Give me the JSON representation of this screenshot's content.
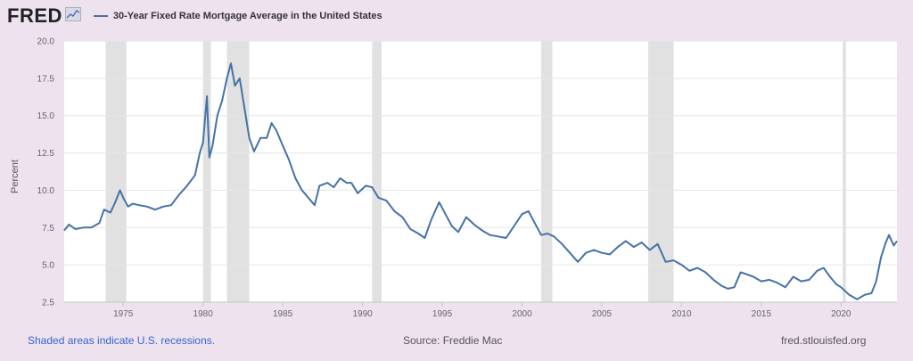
{
  "header": {
    "logo": "FRED",
    "legend_label": "30-Year Fixed Rate Mortgage Average in the United States"
  },
  "footer": {
    "recession_note": "Shaded areas indicate U.S. recessions.",
    "source": "Source: Freddie Mac",
    "site": "fred.stlouisfed.org"
  },
  "colors": {
    "series": "#4572a7",
    "recession": "#e1e1e1",
    "background": "#eee2ef"
  },
  "chart_data": {
    "type": "line",
    "title": "",
    "xlabel": "",
    "ylabel": "Percent",
    "xlim": [
      1971.3,
      2023.5
    ],
    "ylim": [
      2.5,
      20.0
    ],
    "x_ticks": [
      "1975",
      "1980",
      "1985",
      "1990",
      "1995",
      "2000",
      "2005",
      "2010",
      "2015",
      "2020"
    ],
    "y_ticks": [
      "2.5",
      "5.0",
      "7.5",
      "10.0",
      "12.5",
      "15.0",
      "17.5",
      "20.0"
    ],
    "grid": "horizontal",
    "recessions": [
      [
        1973.9,
        1975.2
      ],
      [
        1980.0,
        1980.5
      ],
      [
        1981.5,
        1982.9
      ],
      [
        1990.6,
        1991.2
      ],
      [
        2001.2,
        2001.9
      ],
      [
        2007.9,
        2009.5
      ],
      [
        2020.1,
        2020.3
      ]
    ],
    "series": [
      {
        "name": "30-Year Fixed Rate Mortgage Average in the United States",
        "x": [
          1971.3,
          1971.6,
          1972.0,
          1972.5,
          1973.0,
          1973.5,
          1973.8,
          1974.2,
          1974.5,
          1974.8,
          1975.0,
          1975.3,
          1975.6,
          1976.0,
          1976.5,
          1977.0,
          1977.5,
          1978.0,
          1978.5,
          1979.0,
          1979.5,
          1979.8,
          1980.0,
          1980.25,
          1980.4,
          1980.6,
          1980.9,
          1981.2,
          1981.5,
          1981.75,
          1982.0,
          1982.3,
          1982.6,
          1982.9,
          1983.2,
          1983.6,
          1984.0,
          1984.3,
          1984.6,
          1985.0,
          1985.4,
          1985.8,
          1986.2,
          1986.6,
          1987.0,
          1987.3,
          1987.8,
          1988.2,
          1988.6,
          1989.0,
          1989.3,
          1989.7,
          1990.2,
          1990.6,
          1991.0,
          1991.5,
          1992.0,
          1992.5,
          1993.0,
          1993.5,
          1993.9,
          1994.3,
          1994.8,
          1995.2,
          1995.6,
          1996.0,
          1996.5,
          1997.0,
          1997.5,
          1998.0,
          1998.5,
          1999.0,
          1999.5,
          2000.0,
          2000.4,
          2000.8,
          2001.2,
          2001.6,
          2002.0,
          2002.5,
          2003.0,
          2003.5,
          2004.0,
          2004.5,
          2005.0,
          2005.5,
          2006.0,
          2006.5,
          2007.0,
          2007.5,
          2008.0,
          2008.5,
          2009.0,
          2009.5,
          2010.0,
          2010.5,
          2011.0,
          2011.5,
          2012.0,
          2012.5,
          2012.9,
          2013.3,
          2013.7,
          2014.0,
          2014.5,
          2015.0,
          2015.5,
          2016.0,
          2016.5,
          2017.0,
          2017.5,
          2018.0,
          2018.5,
          2018.9,
          2019.3,
          2019.7,
          2020.0,
          2020.5,
          2021.0,
          2021.5,
          2021.9,
          2022.2,
          2022.5,
          2022.8,
          2023.0,
          2023.3,
          2023.5
        ],
        "values": [
          7.3,
          7.7,
          7.4,
          7.5,
          7.5,
          7.8,
          8.7,
          8.5,
          9.2,
          10.0,
          9.5,
          8.9,
          9.1,
          9.0,
          8.9,
          8.7,
          8.9,
          9.0,
          9.7,
          10.3,
          11.0,
          12.5,
          13.2,
          16.3,
          12.2,
          13.0,
          15.0,
          16.0,
          17.5,
          18.5,
          17.0,
          17.5,
          15.5,
          13.5,
          12.6,
          13.5,
          13.5,
          14.5,
          14.0,
          13.0,
          12.0,
          10.8,
          10.0,
          9.5,
          9.0,
          10.3,
          10.5,
          10.2,
          10.8,
          10.5,
          10.5,
          9.8,
          10.3,
          10.2,
          9.5,
          9.3,
          8.6,
          8.2,
          7.4,
          7.1,
          6.8,
          8.0,
          9.2,
          8.4,
          7.6,
          7.2,
          8.2,
          7.7,
          7.3,
          7.0,
          6.9,
          6.8,
          7.6,
          8.4,
          8.6,
          7.8,
          7.0,
          7.1,
          6.9,
          6.4,
          5.8,
          5.2,
          5.8,
          6.0,
          5.8,
          5.7,
          6.2,
          6.6,
          6.2,
          6.5,
          6.0,
          6.4,
          5.2,
          5.3,
          5.0,
          4.6,
          4.8,
          4.5,
          4.0,
          3.6,
          3.4,
          3.5,
          4.5,
          4.4,
          4.2,
          3.9,
          4.0,
          3.8,
          3.5,
          4.2,
          3.9,
          4.0,
          4.6,
          4.8,
          4.2,
          3.7,
          3.5,
          3.0,
          2.7,
          3.0,
          3.1,
          3.9,
          5.5,
          6.5,
          7.0,
          6.3,
          6.6
        ]
      }
    ]
  }
}
